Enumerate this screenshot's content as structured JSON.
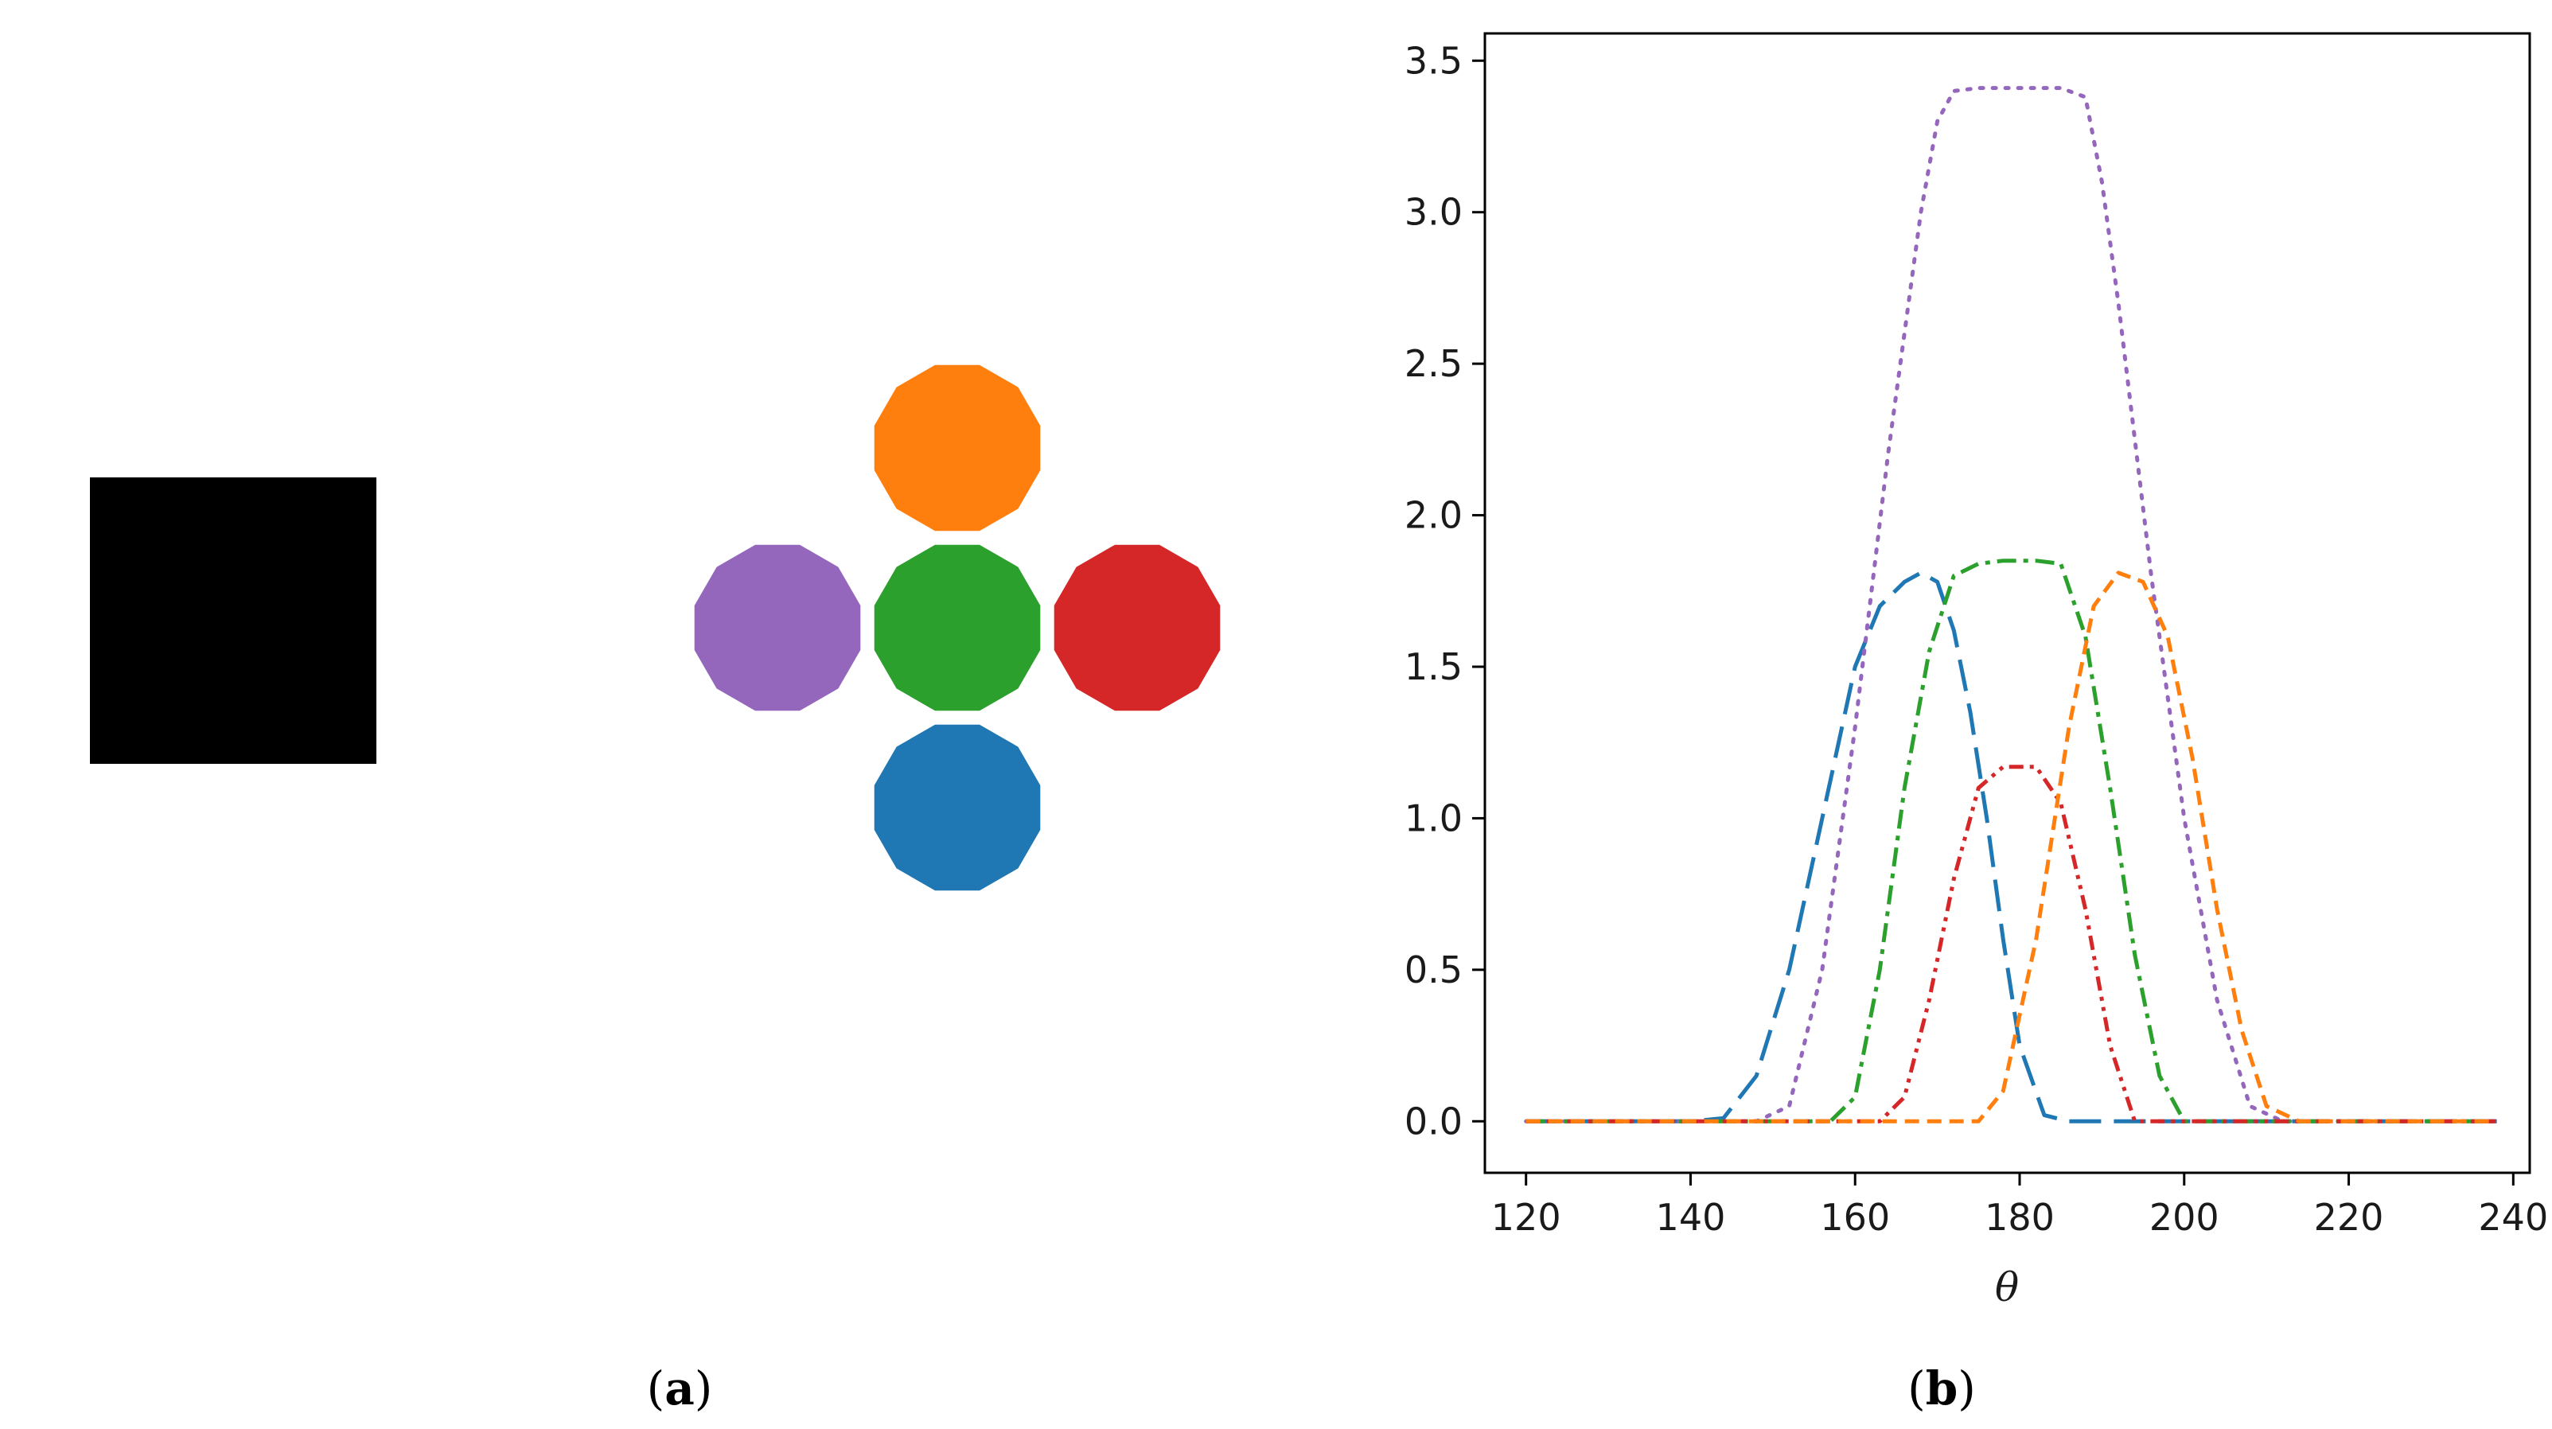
{
  "panels": {
    "a": {
      "open": "(",
      "letter": "a",
      "close": ")"
    },
    "b": {
      "open": "(",
      "letter": "b",
      "close": ")"
    }
  },
  "shapes": {
    "square_color": "#000000",
    "circles": [
      {
        "name": "orange",
        "color": "#ff7f0e"
      },
      {
        "name": "purple",
        "color": "#9467bd"
      },
      {
        "name": "green",
        "color": "#2ca02c"
      },
      {
        "name": "red",
        "color": "#d62728"
      },
      {
        "name": "blue",
        "color": "#1f77b4"
      }
    ]
  },
  "chart_data": {
    "type": "line",
    "xlabel": "θ",
    "ylabel": "",
    "xlim": [
      115,
      242
    ],
    "ylim": [
      -0.17,
      3.59
    ],
    "xticks": [
      120,
      140,
      160,
      180,
      200,
      220,
      240
    ],
    "xtick_labels": [
      "120",
      "140",
      "160",
      "180",
      "200",
      "220",
      "240"
    ],
    "yticks": [
      0.0,
      0.5,
      1.0,
      1.5,
      2.0,
      2.5,
      3.0,
      3.5
    ],
    "ytick_labels": [
      "0.0",
      "0.5",
      "1.0",
      "1.5",
      "2.0",
      "2.5",
      "3.0",
      "3.5"
    ],
    "grid": false,
    "series": [
      {
        "color": "#1f77b4",
        "dash": "long-dash",
        "x": [
          120,
          140,
          144,
          148,
          152,
          156,
          160,
          163,
          166,
          168,
          170,
          172,
          174,
          176,
          178,
          180,
          183,
          186,
          190,
          238
        ],
        "y": [
          0,
          0,
          0.01,
          0.15,
          0.5,
          1.0,
          1.5,
          1.7,
          1.78,
          1.81,
          1.78,
          1.62,
          1.35,
          1.0,
          0.6,
          0.25,
          0.02,
          0,
          0,
          0
        ]
      },
      {
        "color": "#9467bd",
        "dash": "dotted",
        "x": [
          120,
          148,
          152,
          156,
          160,
          164,
          168,
          170,
          172,
          175,
          180,
          185,
          188,
          190,
          192,
          196,
          200,
          204,
          208,
          212,
          238
        ],
        "y": [
          0,
          0,
          0.05,
          0.5,
          1.3,
          2.2,
          3.0,
          3.3,
          3.4,
          3.41,
          3.41,
          3.41,
          3.38,
          3.1,
          2.7,
          1.8,
          1.0,
          0.4,
          0.05,
          0,
          0
        ]
      },
      {
        "color": "#2ca02c",
        "dash": "dash-dot",
        "x": [
          120,
          157,
          160,
          163,
          166,
          169,
          172,
          175,
          178,
          182,
          185,
          188,
          191,
          194,
          197,
          200,
          238
        ],
        "y": [
          0,
          0,
          0.08,
          0.5,
          1.1,
          1.55,
          1.8,
          1.84,
          1.85,
          1.85,
          1.84,
          1.6,
          1.1,
          0.55,
          0.15,
          0,
          0
        ]
      },
      {
        "color": "#d62728",
        "dash": "dash-dot-dot",
        "x": [
          120,
          163,
          166,
          169,
          172,
          175,
          178,
          182,
          185,
          188,
          191,
          194,
          238
        ],
        "y": [
          0,
          0,
          0.08,
          0.4,
          0.8,
          1.1,
          1.17,
          1.17,
          1.05,
          0.7,
          0.25,
          0,
          0
        ]
      },
      {
        "color": "#ff7f0e",
        "dash": "short-dash",
        "x": [
          120,
          175,
          178,
          182,
          186,
          189,
          192,
          195,
          198,
          201,
          204,
          207,
          210,
          214,
          238
        ],
        "y": [
          0,
          0,
          0.1,
          0.6,
          1.3,
          1.7,
          1.81,
          1.78,
          1.6,
          1.2,
          0.7,
          0.3,
          0.05,
          0,
          0
        ]
      }
    ]
  }
}
